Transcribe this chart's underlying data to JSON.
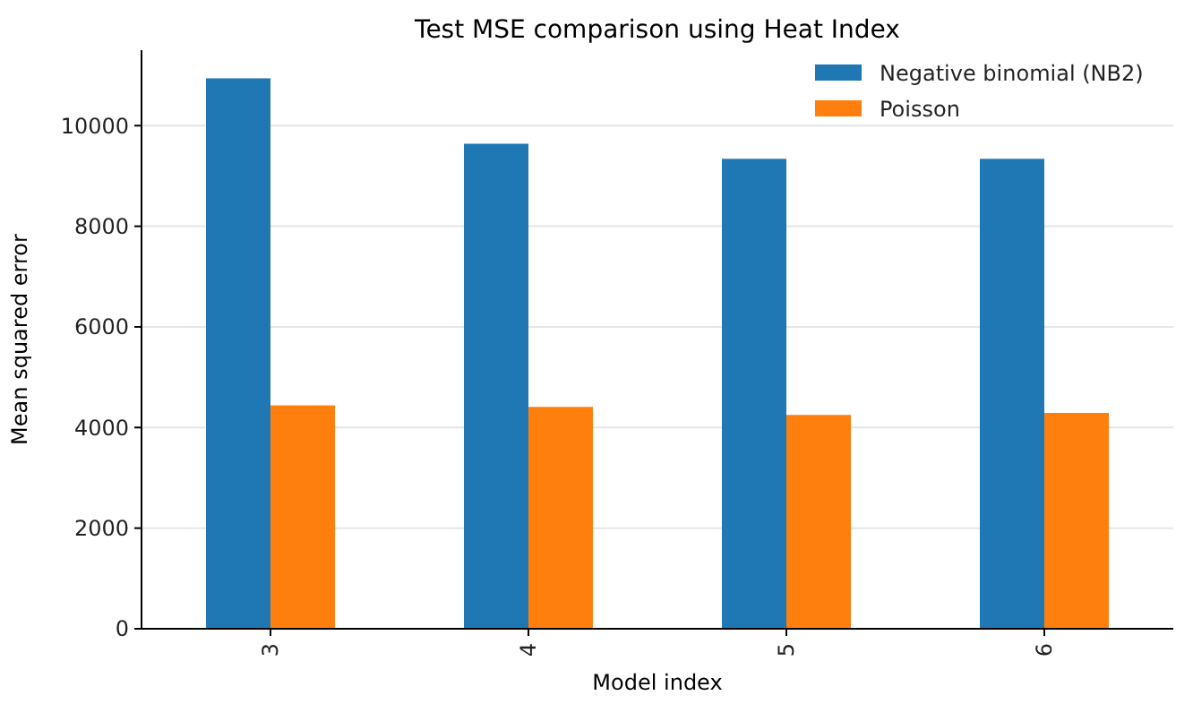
{
  "chart_data": {
    "type": "bar",
    "title": "Test MSE comparison using Heat Index",
    "xlabel": "Model index",
    "ylabel": "Mean squared error",
    "categories": [
      "3",
      "4",
      "5",
      "6"
    ],
    "series": [
      {
        "name": "Negative binomial (NB2)",
        "color": "#1f77b4",
        "values": [
          10940,
          9640,
          9340,
          9340
        ]
      },
      {
        "name": "Poisson",
        "color": "#ff7f0e",
        "values": [
          4440,
          4410,
          4250,
          4290
        ]
      }
    ],
    "ylim": [
      0,
      11500
    ],
    "yticks": [
      0,
      2000,
      4000,
      6000,
      8000,
      10000
    ],
    "grid": "y",
    "legend": "top right"
  }
}
